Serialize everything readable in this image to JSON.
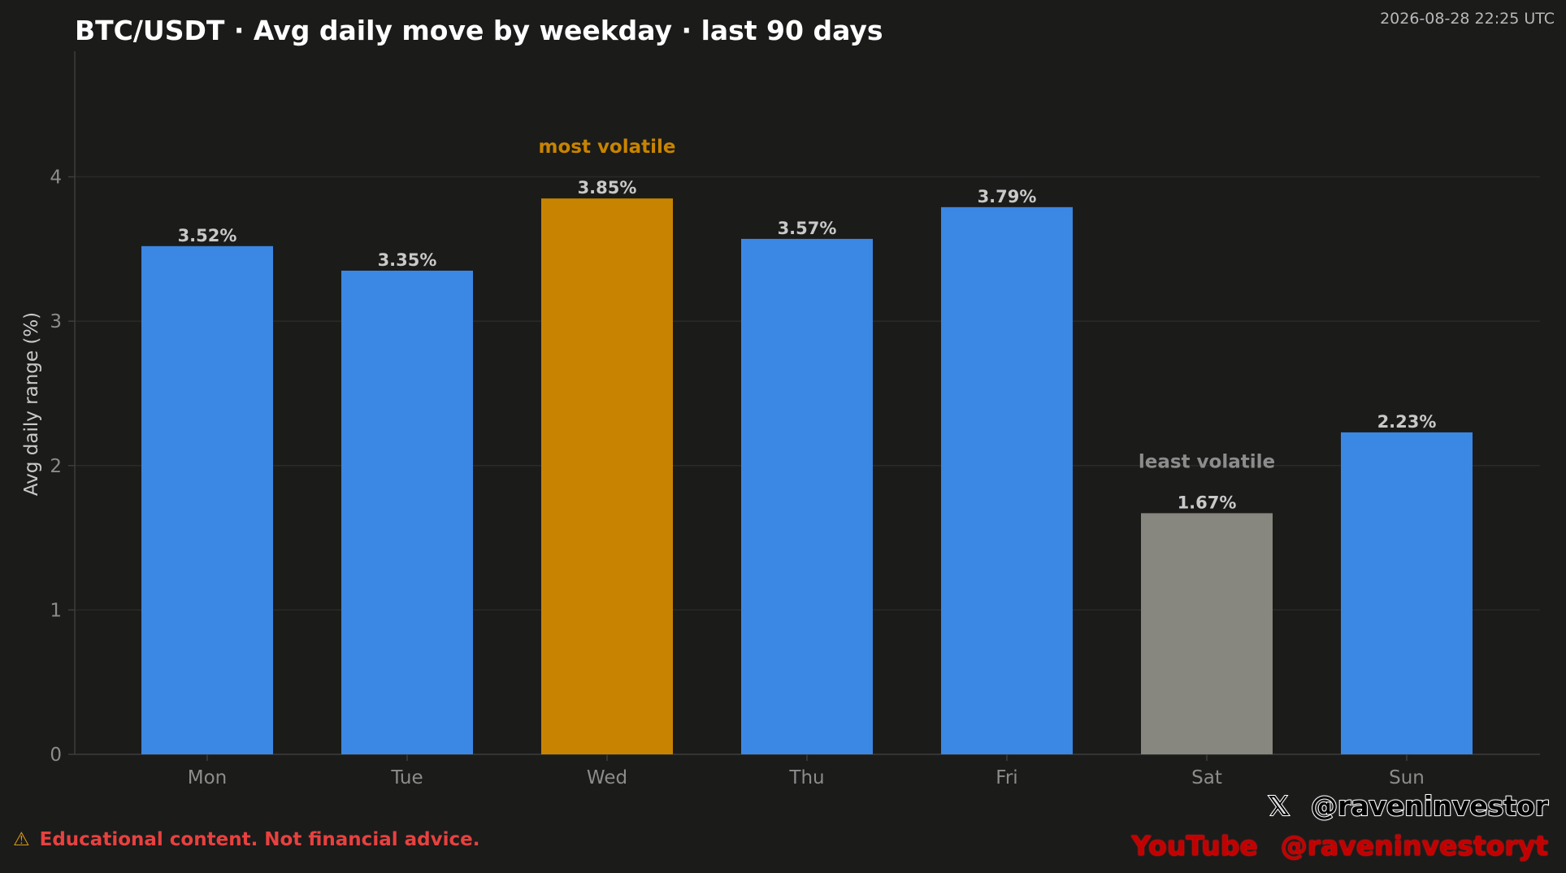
{
  "header": {
    "title": "BTC/USDT · Avg daily move by weekday · last 90 days",
    "timestamp": "2026-08-28 22:25 UTC"
  },
  "footer": {
    "warning_icon": "⚠",
    "disclaimer": "Educational content. Not financial advice.",
    "x_icon": "𝕏",
    "x_handle": "@raveninvestor",
    "youtube_label": "YouTube",
    "youtube_handle": "@raveninvestoryt"
  },
  "colors": {
    "default_bar": "#3a87e4",
    "max_bar": "#c88400",
    "min_bar": "#87867f",
    "max_annotation": "#c88400",
    "min_annotation": "#8c8c8c",
    "value_label": "#c9c9c9",
    "axis_text": "#8c8c8c",
    "axis_label": "#c9c9c9",
    "grid": "#2a2a29",
    "background": "#1b1b1a"
  },
  "chart_data": {
    "type": "bar",
    "title": "BTC/USDT · Avg daily move by weekday · last 90 days",
    "xlabel": "",
    "ylabel": "Avg daily range (%)",
    "categories": [
      "Mon",
      "Tue",
      "Wed",
      "Thu",
      "Fri",
      "Sat",
      "Sun"
    ],
    "values": [
      3.52,
      3.35,
      3.85,
      3.57,
      3.79,
      1.67,
      2.23
    ],
    "value_labels": [
      "3.52%",
      "3.35%",
      "3.85%",
      "3.57%",
      "3.79%",
      "1.67%",
      "2.23%"
    ],
    "ylim": [
      0,
      4.87
    ],
    "yticks": [
      0,
      1,
      2,
      3,
      4
    ],
    "grid": true,
    "highlight_max": {
      "category": "Wed",
      "annotation": "most volatile"
    },
    "highlight_min": {
      "category": "Sat",
      "annotation": "least volatile"
    }
  }
}
